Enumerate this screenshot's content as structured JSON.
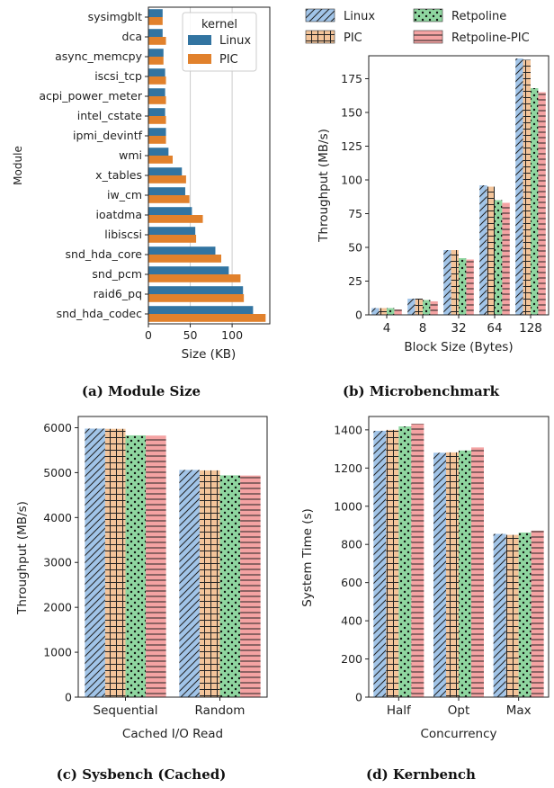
{
  "palette": {
    "linux_solid": "#3274a1",
    "pic_solid": "#e1812c",
    "linux": "#a1c4e8",
    "pic": "#f3c49a",
    "retpoline": "#8fd6a0",
    "retpoline_pic": "#f4a3a3",
    "grid": "#cccccc"
  },
  "legend_top": [
    "Linux",
    "Retpoline",
    "PIC",
    "Retpoline-PIC"
  ],
  "chart_data": [
    {
      "id": "a",
      "type": "bar",
      "orientation": "horizontal",
      "caption": "(a) Module Size",
      "ylabel": "Module",
      "xlabel": "Size (KB)",
      "xlim": [
        0,
        145
      ],
      "xticks": [
        "0",
        "50",
        "100"
      ],
      "grid": true,
      "legend_title": "kernel",
      "legend_position": "top-right",
      "categories": [
        "sysimgblt",
        "dca",
        "async_memcpy",
        "iscsi_tcp",
        "acpi_power_meter",
        "intel_cstate",
        "ipmi_devintf",
        "wmi",
        "x_tables",
        "iw_cm",
        "ioatdma",
        "libiscsi",
        "snd_hda_core",
        "snd_pcm",
        "raid6_pq",
        "snd_hda_codec"
      ],
      "series": [
        {
          "name": "Linux",
          "values": [
            17,
            17,
            18,
            20,
            20,
            20,
            21,
            24,
            40,
            44,
            52,
            56,
            80,
            96,
            113,
            125
          ]
        },
        {
          "name": "PIC",
          "values": [
            17,
            21,
            18,
            21,
            21,
            21,
            21,
            29,
            45,
            49,
            65,
            57,
            87,
            110,
            114,
            140
          ]
        }
      ]
    },
    {
      "id": "b",
      "type": "bar",
      "caption": "(b) Microbenchmark",
      "xlabel": "Block Size (Bytes)",
      "ylabel": "Throughput (MB/s)",
      "ylim": [
        0,
        192
      ],
      "yticks": [
        "0",
        "25",
        "50",
        "75",
        "100",
        "125",
        "150",
        "175"
      ],
      "categories": [
        "4",
        "8",
        "32",
        "64",
        "128"
      ],
      "series": [
        {
          "name": "Linux",
          "values": [
            5,
            12,
            48,
            96,
            190
          ]
        },
        {
          "name": "PIC",
          "values": [
            5,
            12,
            48,
            95,
            189
          ]
        },
        {
          "name": "Retpoline",
          "values": [
            5,
            11,
            42,
            85,
            168
          ]
        },
        {
          "name": "Retpoline-PIC",
          "values": [
            4,
            10,
            41,
            83,
            165
          ]
        }
      ]
    },
    {
      "id": "c",
      "type": "bar",
      "caption": "(c) Sysbench (Cached)",
      "xlabel": "Cached I/O Read",
      "ylabel": "Throughput (MB/s)",
      "ylim": [
        0,
        6250
      ],
      "yticks": [
        "0",
        "1000",
        "2000",
        "3000",
        "4000",
        "5000",
        "6000"
      ],
      "categories": [
        "Sequential",
        "Random"
      ],
      "series": [
        {
          "name": "Linux",
          "values": [
            5980,
            5060
          ]
        },
        {
          "name": "PIC",
          "values": [
            5975,
            5050
          ]
        },
        {
          "name": "Retpoline",
          "values": [
            5830,
            4940
          ]
        },
        {
          "name": "Retpoline-PIC",
          "values": [
            5825,
            4935
          ]
        }
      ]
    },
    {
      "id": "d",
      "type": "bar",
      "caption": "(d) Kernbench",
      "xlabel": "Concurrency",
      "ylabel": "System Time (s)",
      "ylim": [
        0,
        1470
      ],
      "yticks": [
        "0",
        "200",
        "400",
        "600",
        "800",
        "1000",
        "1200",
        "1400"
      ],
      "categories": [
        "Half",
        "Opt",
        "Max"
      ],
      "series": [
        {
          "name": "Linux",
          "values": [
            1395,
            1280,
            855
          ]
        },
        {
          "name": "PIC",
          "values": [
            1400,
            1282,
            850
          ]
        },
        {
          "name": "Retpoline",
          "values": [
            1418,
            1292,
            862
          ]
        },
        {
          "name": "Retpoline-PIC",
          "values": [
            1432,
            1308,
            872
          ]
        }
      ]
    }
  ]
}
